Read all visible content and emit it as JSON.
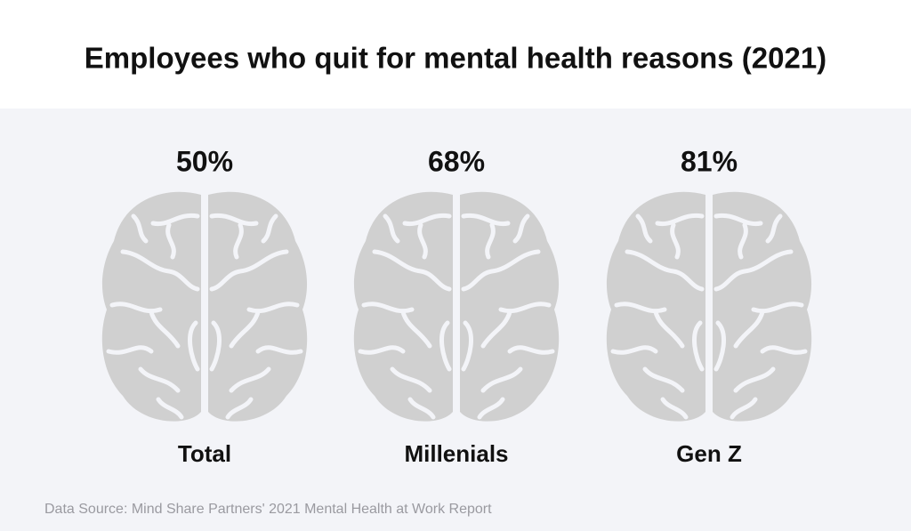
{
  "chart_data": {
    "type": "pictograph",
    "title": "Employees who quit for mental health reasons (2021)",
    "categories": [
      "Total",
      "Millenials",
      "Gen Z"
    ],
    "values": [
      50,
      68,
      81
    ],
    "value_labels": [
      "50%",
      "68%",
      "81%"
    ],
    "colors": [
      "#7ddfc0",
      "#1aa882",
      "#0b6e6a"
    ],
    "empty_color": "#d0d0d0",
    "ylim": [
      0,
      100
    ],
    "source": "Data Source: Mind Share Partners' 2021 Mental Health at Work Report"
  }
}
